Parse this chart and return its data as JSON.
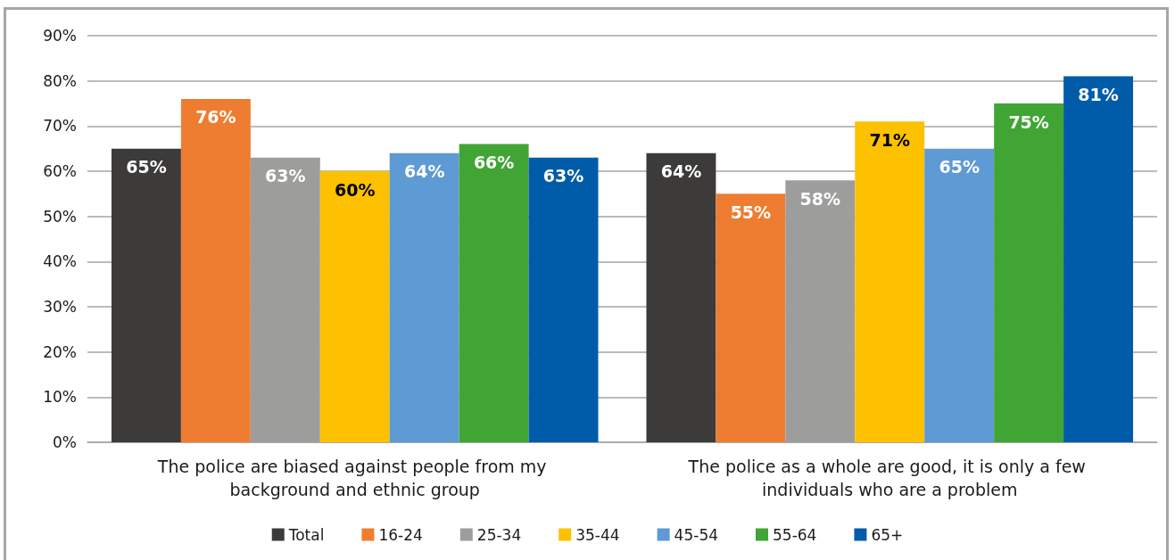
{
  "chart_data": {
    "type": "bar",
    "categories": [
      "The police are biased against people from my background and ethnic group",
      "The police as a whole are good, it is only a few individuals who are a problem"
    ],
    "series": [
      {
        "name": "Total",
        "color": "#3c3b3a",
        "values": [
          65,
          64
        ],
        "value_labels": [
          "65%",
          "64%"
        ]
      },
      {
        "name": "16-24",
        "color": "#ee7d31",
        "values": [
          76,
          55
        ],
        "value_labels": [
          "76%",
          "55%"
        ]
      },
      {
        "name": "25-34",
        "color": "#9d9d9c",
        "values": [
          63,
          58
        ],
        "value_labels": [
          "63%",
          "58%"
        ]
      },
      {
        "name": "35-44",
        "color": "#fdc100",
        "values": [
          60,
          71
        ],
        "value_labels": [
          "60%",
          "71%"
        ]
      },
      {
        "name": "45-54",
        "color": "#5e9ad3",
        "values": [
          64,
          65
        ],
        "value_labels": [
          "64%",
          "65%"
        ]
      },
      {
        "name": "55-64",
        "color": "#40a535",
        "values": [
          66,
          75
        ],
        "value_labels": [
          "66%",
          "75%"
        ]
      },
      {
        "name": "65+",
        "color": "#005ca9",
        "values": [
          63,
          81
        ],
        "value_labels": [
          "63%",
          "81%"
        ]
      }
    ],
    "ylim": [
      0,
      90
    ],
    "yticks": [
      {
        "value": 0,
        "label": "0%"
      },
      {
        "value": 10,
        "label": "10%"
      },
      {
        "value": 20,
        "label": "20%"
      },
      {
        "value": 30,
        "label": "30%"
      },
      {
        "value": 40,
        "label": "40%"
      },
      {
        "value": 50,
        "label": "50%"
      },
      {
        "value": 60,
        "label": "60%"
      },
      {
        "value": 70,
        "label": "70%"
      },
      {
        "value": 80,
        "label": "80%"
      },
      {
        "value": 90,
        "label": "90%"
      }
    ],
    "grid": "y",
    "legend": "bottom"
  }
}
